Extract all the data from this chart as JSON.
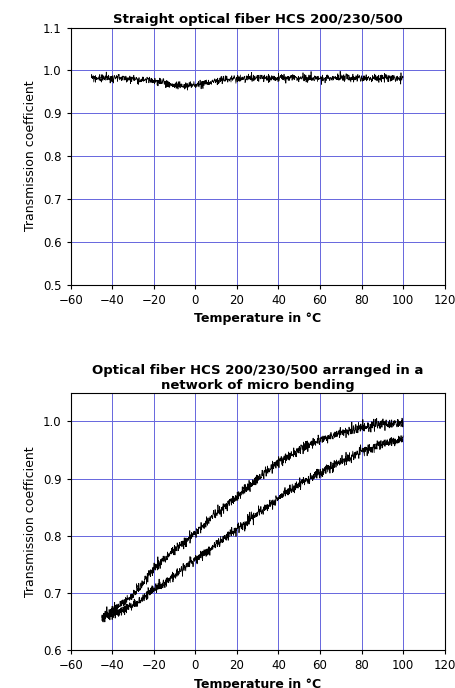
{
  "title1": "Straight optical fiber HCS 200/230/500",
  "title2": "Optical fiber HCS 200/230/500 arranged in a\nnetwork of micro bending",
  "xlabel": "Temperature in °C",
  "ylabel": "Transmission coefficient",
  "xlim": [
    -60,
    120
  ],
  "xticks": [
    -60,
    -40,
    -20,
    0,
    20,
    40,
    60,
    80,
    100,
    120
  ],
  "plot1_ylim": [
    0.5,
    1.1
  ],
  "plot1_yticks": [
    0.5,
    0.6,
    0.7,
    0.8,
    0.9,
    1.0,
    1.1
  ],
  "plot2_ylim": [
    0.6,
    1.05
  ],
  "plot2_yticks": [
    0.6,
    0.7,
    0.8,
    0.9,
    1.0
  ],
  "grid_color": "#6666dd",
  "line_color": "#000000",
  "background_color": "#ffffff",
  "title_fontsize": 9.5,
  "label_fontsize": 9,
  "tick_fontsize": 8.5
}
